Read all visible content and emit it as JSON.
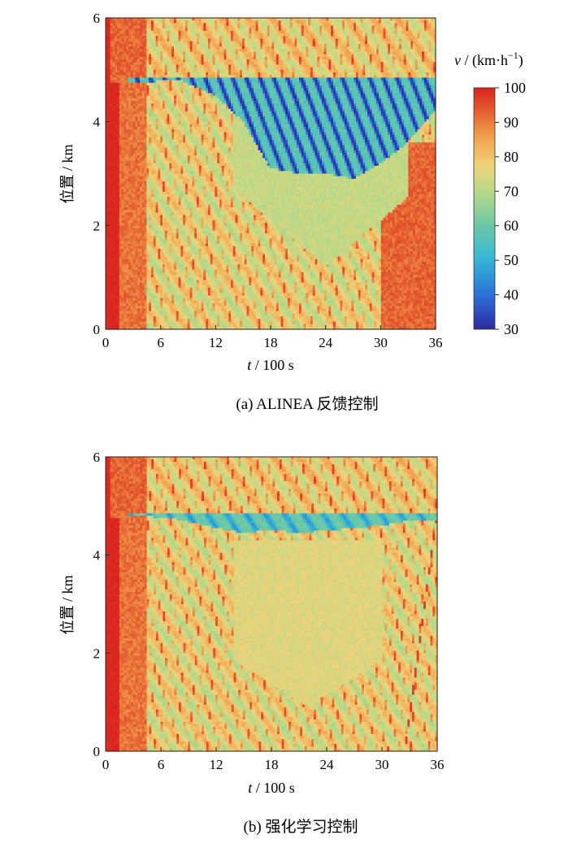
{
  "chart_data": [
    {
      "type": "heatmap",
      "panel": "(a)",
      "caption": "(a)  ALINEA 反馈控制",
      "xlabel_var": "t",
      "xlabel_rest": " / 100 s",
      "ylabel": "位置 / km",
      "xlim": [
        0,
        36
      ],
      "ylim": [
        0,
        6
      ],
      "x_ticks": [
        "0",
        "6",
        "12",
        "18",
        "24",
        "30",
        "36"
      ],
      "y_ticks": [
        "0",
        "2",
        "4",
        "6"
      ],
      "grid": false,
      "congestion_zone": {
        "queue_front_km": 4.85,
        "tail_envelope_km_at_t": [
          [
            3,
            4.75
          ],
          [
            8,
            4.8
          ],
          [
            12,
            4.5
          ],
          [
            15,
            4.0
          ],
          [
            18,
            3.1
          ],
          [
            21,
            3.0
          ],
          [
            24,
            3.0
          ],
          [
            27,
            2.9
          ],
          [
            30,
            3.2
          ],
          [
            33,
            3.6
          ],
          [
            36,
            4.2
          ]
        ],
        "min_speed_kmh": 30
      }
    },
    {
      "type": "heatmap",
      "panel": "(b)",
      "caption": "(b)  强化学习控制",
      "xlabel_var": "t",
      "xlabel_rest": " / 100 s",
      "ylabel": "位置 / km",
      "xlim": [
        0,
        36
      ],
      "ylim": [
        0,
        6
      ],
      "x_ticks": [
        "0",
        "6",
        "12",
        "18",
        "24",
        "30",
        "36"
      ],
      "y_ticks": [
        "0",
        "2",
        "4",
        "6"
      ],
      "grid": false,
      "congestion_zone": {
        "queue_front_km": 4.85,
        "tail_envelope_km_at_t": [
          [
            3,
            4.82
          ],
          [
            8,
            4.72
          ],
          [
            12,
            4.55
          ],
          [
            15,
            4.45
          ],
          [
            18,
            4.5
          ],
          [
            21,
            4.45
          ],
          [
            24,
            4.5
          ],
          [
            27,
            4.55
          ],
          [
            30,
            4.6
          ],
          [
            33,
            4.7
          ],
          [
            36,
            4.7
          ]
        ],
        "min_speed_kmh": 40
      }
    }
  ],
  "colorbar": {
    "label_var": "v",
    "label_rest": " / (km·h",
    "label_sup": "−1",
    "label_close": ")",
    "range": [
      30,
      100
    ],
    "ticks": [
      "100",
      "90",
      "80",
      "70",
      "60",
      "50",
      "40",
      "30"
    ],
    "colors": [
      "#2f2aa0",
      "#2b6fd6",
      "#35b6d6",
      "#6cc8a6",
      "#b8d987",
      "#f0d27a",
      "#f29e4c",
      "#e35b2f",
      "#d9221f"
    ]
  }
}
